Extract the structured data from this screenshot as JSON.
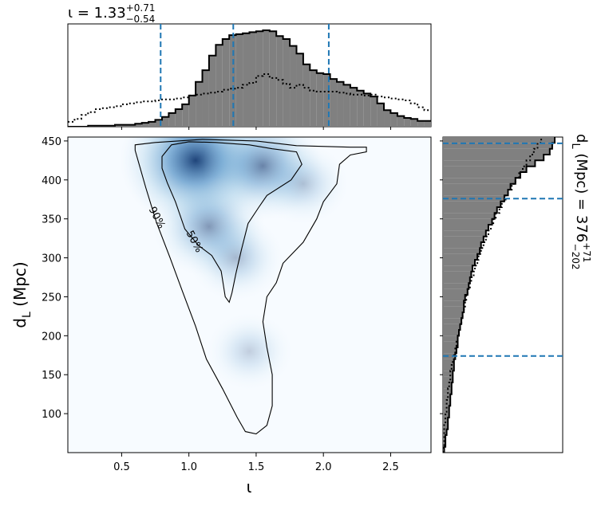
{
  "chart_data": [
    {
      "type": "heatmap",
      "panel": "joint",
      "xlabel": "ι",
      "ylabel_main": "d",
      "ylabel_sub": "L",
      "ylabel_unit": " (Mpc)",
      "xlim": [
        0.1,
        2.8
      ],
      "ylim": [
        50,
        455
      ],
      "xticks": [
        0.5,
        1.0,
        1.5,
        2.0,
        2.5
      ],
      "xtick_labels": [
        "0.5",
        "1.0",
        "1.5",
        "2.0",
        "2.5"
      ],
      "yticks": [
        100,
        150,
        200,
        250,
        300,
        350,
        400,
        450
      ],
      "ytick_labels": [
        "100",
        "150",
        "200",
        "250",
        "300",
        "350",
        "400",
        "450"
      ],
      "colormap": "Blues",
      "density_peaks": [
        {
          "x": 1.05,
          "y": 425,
          "weight": 1.0
        },
        {
          "x": 1.55,
          "y": 418,
          "weight": 0.65
        },
        {
          "x": 1.15,
          "y": 340,
          "weight": 0.55
        },
        {
          "x": 1.35,
          "y": 300,
          "weight": 0.35
        },
        {
          "x": 1.45,
          "y": 180,
          "weight": 0.25
        },
        {
          "x": 1.85,
          "y": 395,
          "weight": 0.3
        }
      ],
      "contours": [
        {
          "label": "90%",
          "points": [
            [
              0.6,
              438
            ],
            [
              0.6,
              445
            ],
            [
              0.75,
              448
            ],
            [
              1.1,
              452
            ],
            [
              1.5,
              450
            ],
            [
              1.8,
              444
            ],
            [
              2.2,
              442
            ],
            [
              2.32,
              442
            ],
            [
              2.32,
              436
            ],
            [
              2.2,
              432
            ],
            [
              2.12,
              420
            ],
            [
              2.1,
              395
            ],
            [
              2.0,
              372
            ],
            [
              1.95,
              350
            ],
            [
              1.85,
              320
            ],
            [
              1.7,
              293
            ],
            [
              1.65,
              268
            ],
            [
              1.58,
              250
            ],
            [
              1.55,
              218
            ],
            [
              1.58,
              185
            ],
            [
              1.62,
              150
            ],
            [
              1.62,
              110
            ],
            [
              1.58,
              85
            ],
            [
              1.5,
              74
            ],
            [
              1.42,
              77
            ],
            [
              1.36,
              95
            ],
            [
              1.25,
              132
            ],
            [
              1.13,
              170
            ],
            [
              1.05,
              212
            ],
            [
              0.95,
              258
            ],
            [
              0.86,
              300
            ],
            [
              0.76,
              345
            ],
            [
              0.68,
              390
            ],
            [
              0.63,
              420
            ],
            [
              0.6,
              438
            ]
          ]
        },
        {
          "label": "50%",
          "points": [
            [
              0.8,
              430
            ],
            [
              0.87,
              445
            ],
            [
              1.0,
              449
            ],
            [
              1.2,
              448
            ],
            [
              1.45,
              445
            ],
            [
              1.62,
              440
            ],
            [
              1.8,
              436
            ],
            [
              1.84,
              420
            ],
            [
              1.76,
              400
            ],
            [
              1.58,
              380
            ],
            [
              1.52,
              365
            ],
            [
              1.44,
              344
            ],
            [
              1.39,
              310
            ],
            [
              1.35,
              280
            ],
            [
              1.32,
              255
            ],
            [
              1.3,
              243
            ],
            [
              1.27,
              250
            ],
            [
              1.24,
              283
            ],
            [
              1.17,
              303
            ],
            [
              1.07,
              316
            ],
            [
              0.97,
              337
            ],
            [
              0.9,
              372
            ],
            [
              0.84,
              396
            ],
            [
              0.8,
              415
            ],
            [
              0.8,
              430
            ]
          ]
        }
      ]
    },
    {
      "type": "bar",
      "panel": "top-marginal",
      "title_main": "ι = 1.33",
      "title_sup": "+0.71",
      "title_sub": "−0.54",
      "x_edges_start": 0.1,
      "x_bin_width": 0.05,
      "posterior_counts": [
        0,
        0,
        0,
        1,
        1,
        1,
        1,
        2,
        2,
        2,
        3,
        4,
        5,
        7,
        10,
        14,
        18,
        23,
        32,
        46,
        58,
        73,
        84,
        90,
        94,
        95,
        96,
        97,
        98,
        99,
        98,
        93,
        90,
        83,
        75,
        64,
        58,
        55,
        54,
        49,
        46,
        43,
        40,
        37,
        34,
        31,
        24,
        17,
        14,
        11,
        9,
        8,
        6,
        6
      ],
      "prior_counts": [
        5,
        8,
        12,
        15,
        18,
        19,
        20,
        21,
        23,
        24,
        25,
        26,
        26,
        27,
        28,
        28,
        29,
        30,
        32,
        33,
        34,
        35,
        36,
        38,
        39,
        40,
        43,
        45,
        52,
        54,
        50,
        48,
        44,
        40,
        43,
        40,
        37,
        36,
        36,
        36,
        35,
        34,
        33,
        33,
        32,
        33,
        31,
        30,
        29,
        28,
        27,
        24,
        20,
        17
      ],
      "median": 1.33,
      "lower": 0.79,
      "upper": 2.04
    },
    {
      "type": "bar",
      "panel": "right-marginal",
      "orientation": "horizontal",
      "label_main": "d",
      "label_sub": "L",
      "label_unit": " (Mpc) = 376",
      "label_sup": "+71",
      "label_sub2": "−202",
      "y_edges_start": 50,
      "y_bin_width": 7.5,
      "posterior_counts": [
        1,
        2,
        2,
        3,
        4,
        4,
        5,
        5,
        6,
        6,
        7,
        7,
        8,
        8,
        9,
        9,
        10,
        11,
        12,
        12,
        13,
        14,
        15,
        16,
        17,
        17,
        18,
        20,
        21,
        22,
        23,
        24,
        26,
        28,
        30,
        31,
        33,
        35,
        37,
        40,
        42,
        44,
        47,
        50,
        53,
        55,
        59,
        63,
        68,
        75,
        82,
        87,
        89,
        91
      ],
      "prior_counts": [
        0,
        1,
        1,
        1,
        1,
        2,
        2,
        3,
        3,
        4,
        4,
        5,
        6,
        6,
        7,
        8,
        9,
        10,
        11,
        12,
        13,
        14,
        15,
        16,
        17,
        18,
        19,
        20,
        22,
        23,
        25,
        26,
        28,
        29,
        31,
        33,
        35,
        37,
        39,
        41,
        43,
        46,
        48,
        51,
        53,
        56,
        59,
        62,
        65,
        68,
        71,
        74,
        77,
        80
      ],
      "median": 376,
      "lower": 174,
      "upper": 447
    }
  ]
}
